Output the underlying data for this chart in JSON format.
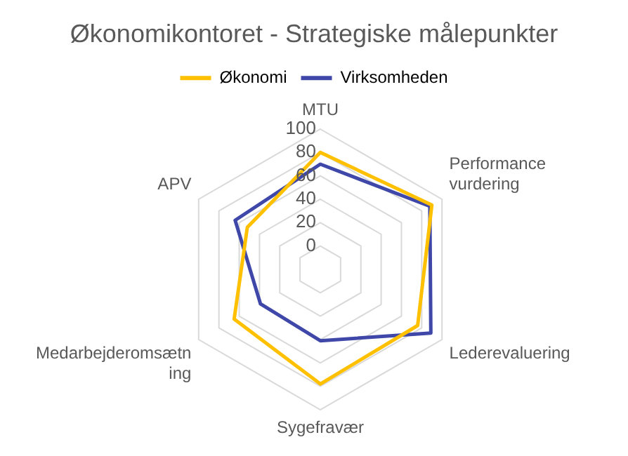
{
  "chart_data": {
    "type": "radar",
    "title": "Økonomikontoret - Strategiske målepunkter",
    "categories": [
      "MTU",
      "Performance vurdering",
      "Lederevaluering",
      "Sygefravær",
      "Medarbejderomsætning",
      "APV"
    ],
    "series": [
      {
        "name": "Økonomi",
        "color": "#ffc000",
        "values": [
          80,
          90,
          76,
          78,
          65,
          52
        ]
      },
      {
        "name": "Virksomheden",
        "color": "#3f48a8",
        "values": [
          70,
          88,
          89,
          41,
          39,
          64
        ]
      }
    ],
    "ylim": [
      -20,
      100
    ],
    "yticks": [
      0,
      20,
      40,
      60,
      80,
      100
    ],
    "grid": true,
    "legend": "top",
    "marker": "none",
    "line_style": "solid"
  }
}
